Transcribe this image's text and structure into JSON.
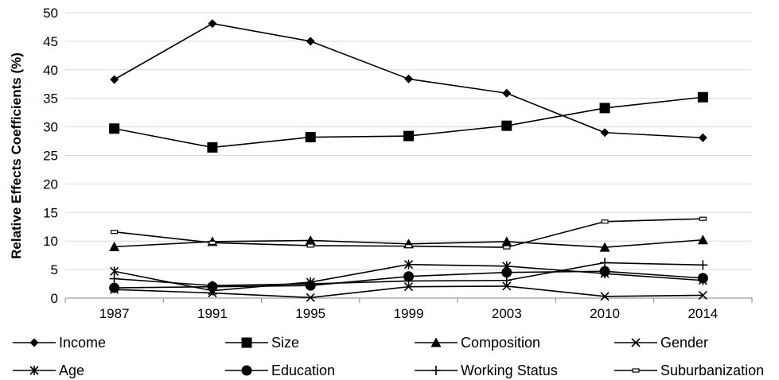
{
  "chart_data": {
    "type": "line",
    "title": "",
    "xlabel": "",
    "ylabel": "Relative Effects Coefficients (%)",
    "ylim": [
      0,
      50
    ],
    "yticks": [
      0,
      5,
      10,
      15,
      20,
      25,
      30,
      35,
      40,
      45,
      50
    ],
    "categories": [
      "1987",
      "1991",
      "1995",
      "1999",
      "2003",
      "2010",
      "2014"
    ],
    "grid": "horizontal",
    "legend_position": "bottom",
    "series": [
      {
        "name": "Income",
        "marker": "diamond",
        "values": [
          38.3,
          48.1,
          45.0,
          38.4,
          35.9,
          29.0,
          28.1
        ]
      },
      {
        "name": "Size",
        "marker": "square",
        "values": [
          29.7,
          26.4,
          28.2,
          28.4,
          30.2,
          33.3,
          35.2
        ]
      },
      {
        "name": "Composition",
        "marker": "triangle",
        "values": [
          9.0,
          9.9,
          10.1,
          9.5,
          9.9,
          8.9,
          10.2
        ]
      },
      {
        "name": "Gender",
        "marker": "x",
        "values": [
          1.5,
          0.9,
          0.1,
          2.0,
          2.1,
          0.3,
          0.5
        ]
      },
      {
        "name": "Age",
        "marker": "asterisk",
        "values": [
          4.7,
          1.3,
          2.8,
          5.9,
          5.6,
          4.3,
          3.1
        ]
      },
      {
        "name": "Education",
        "marker": "circle",
        "values": [
          1.8,
          2.0,
          2.2,
          3.8,
          4.5,
          4.7,
          3.5
        ]
      },
      {
        "name": "Working Status",
        "marker": "plus",
        "values": [
          3.4,
          2.2,
          2.5,
          3.0,
          3.1,
          6.2,
          5.8
        ]
      },
      {
        "name": "Suburbanization",
        "marker": "dash",
        "values": [
          11.6,
          9.7,
          9.2,
          9.1,
          8.9,
          13.4,
          13.9
        ]
      }
    ]
  }
}
